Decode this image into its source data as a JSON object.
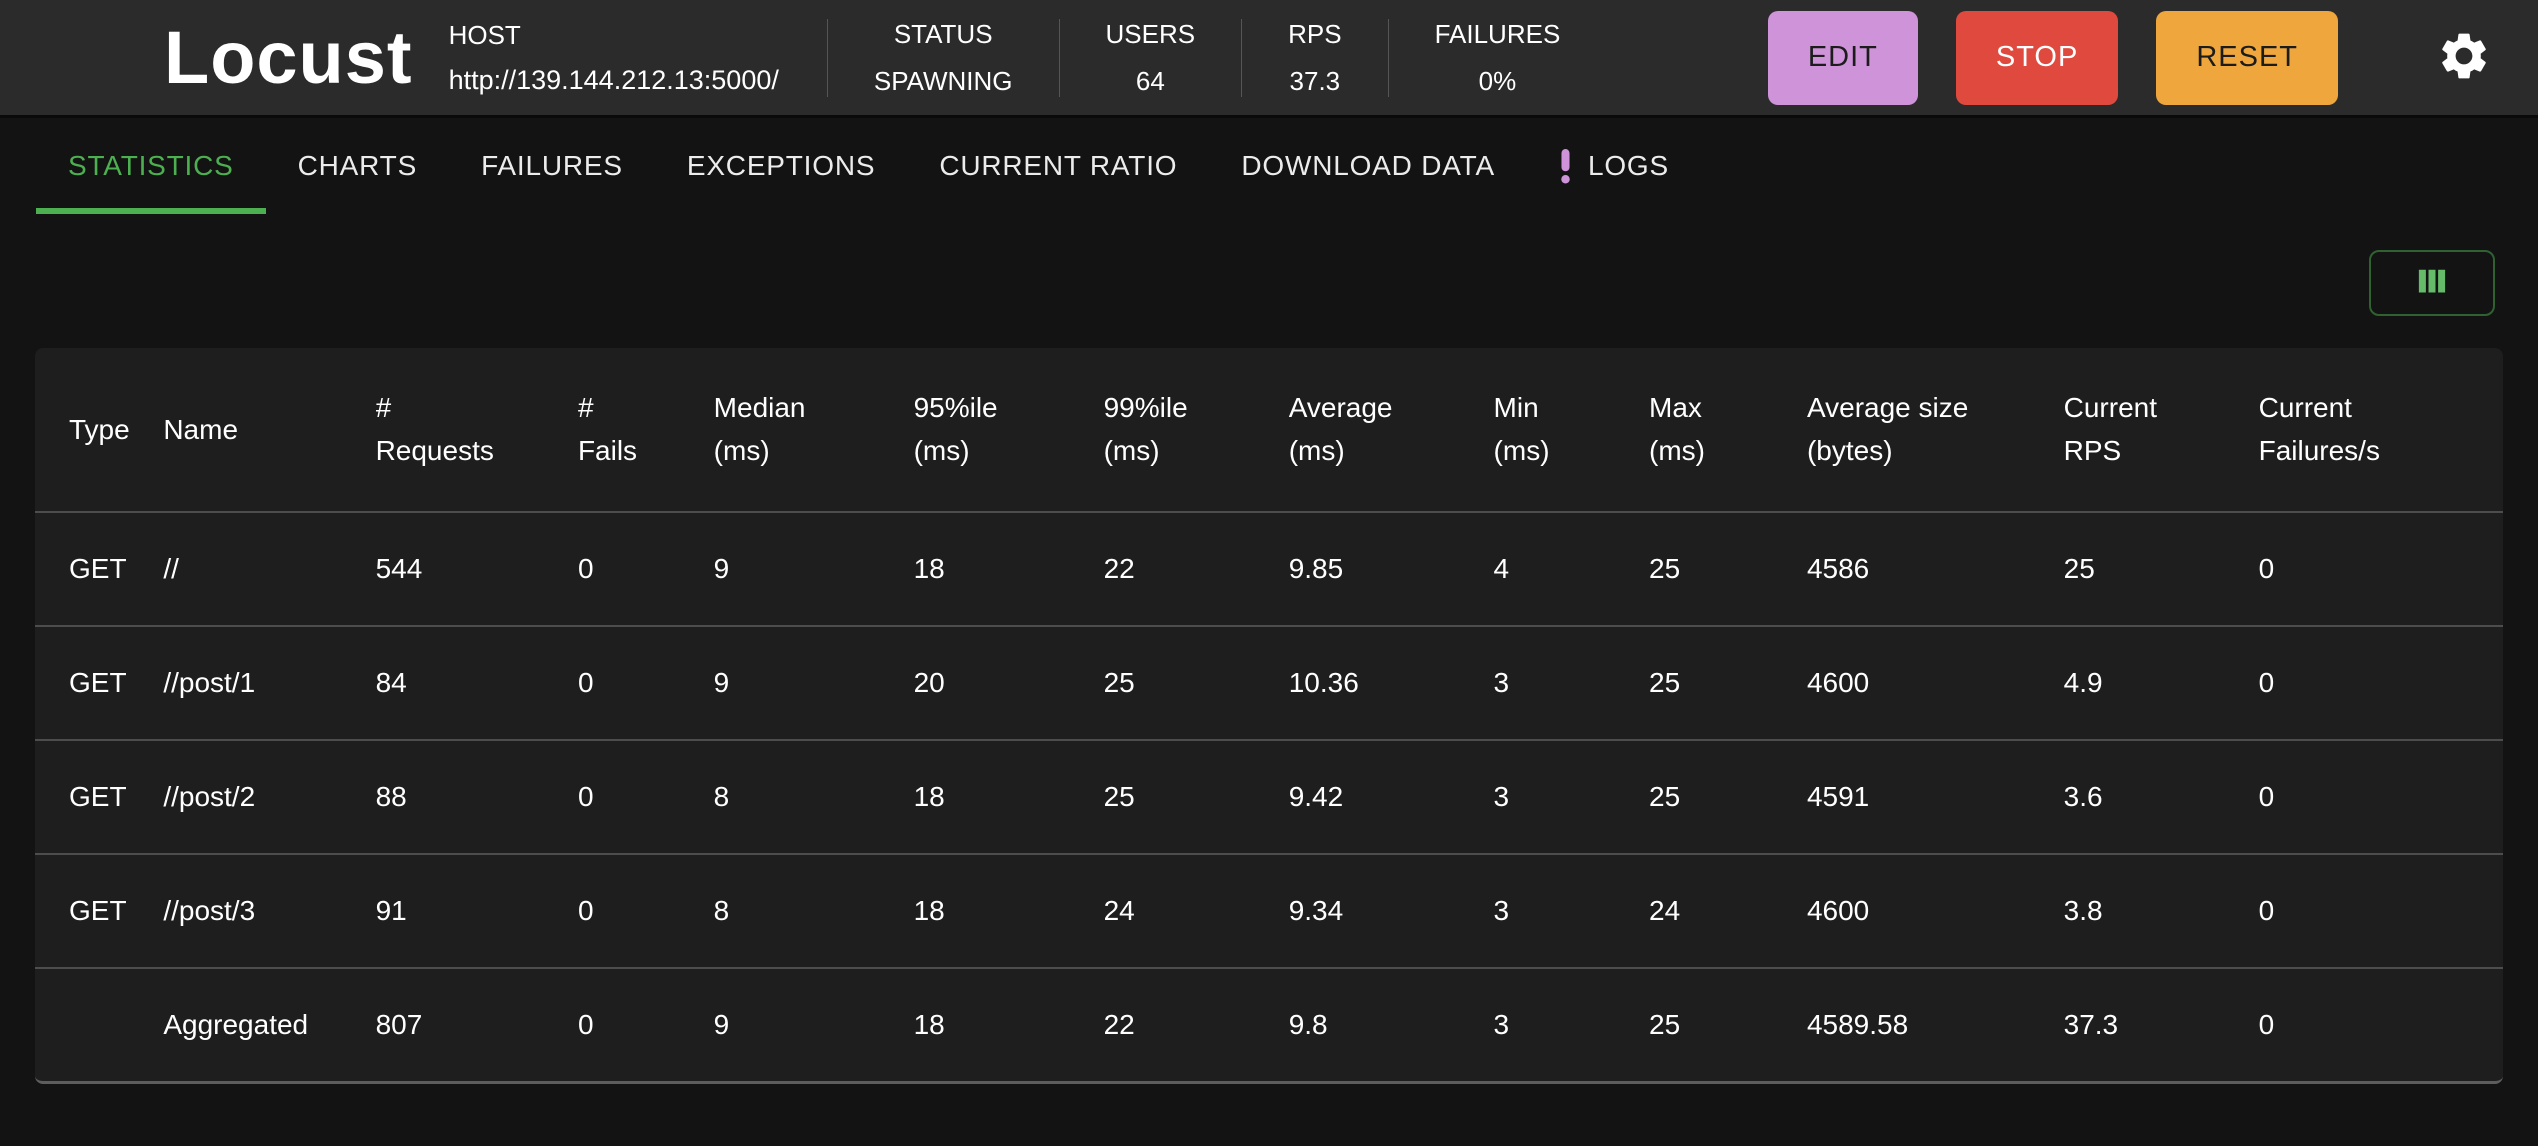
{
  "header": {
    "brand": "Locust",
    "host_label": "HOST",
    "host_url": "http://139.144.212.13:5000/",
    "stats": [
      {
        "label": "STATUS",
        "value": "SPAWNING"
      },
      {
        "label": "USERS",
        "value": "64"
      },
      {
        "label": "RPS",
        "value": "37.3"
      },
      {
        "label": "FAILURES",
        "value": "0%"
      }
    ],
    "buttons": {
      "edit": "EDIT",
      "stop": "STOP",
      "reset": "RESET"
    },
    "icons": {
      "settings": "gear-icon",
      "logo": "locust-logo-icon"
    }
  },
  "tabs": [
    {
      "label": "STATISTICS",
      "active": true
    },
    {
      "label": "CHARTS"
    },
    {
      "label": "FAILURES"
    },
    {
      "label": "EXCEPTIONS"
    },
    {
      "label": "CURRENT RATIO"
    },
    {
      "label": "DOWNLOAD DATA"
    },
    {
      "label": "LOGS",
      "badge": "!"
    }
  ],
  "toolbar": {
    "column_selector_icon": "view-columns-icon"
  },
  "table": {
    "columns": [
      {
        "lines": [
          "Type"
        ]
      },
      {
        "lines": [
          "Name"
        ]
      },
      {
        "lines": [
          "#",
          "Requests"
        ]
      },
      {
        "lines": [
          "#",
          "Fails"
        ]
      },
      {
        "lines": [
          "Median",
          "(ms)"
        ]
      },
      {
        "lines": [
          "95%ile",
          "(ms)"
        ]
      },
      {
        "lines": [
          "99%ile",
          "(ms)"
        ]
      },
      {
        "lines": [
          "Average",
          "(ms)"
        ]
      },
      {
        "lines": [
          "Min",
          "(ms)"
        ]
      },
      {
        "lines": [
          "Max",
          "(ms)"
        ]
      },
      {
        "lines": [
          "Average size",
          "(bytes)"
        ]
      },
      {
        "lines": [
          "Current",
          "RPS"
        ]
      },
      {
        "lines": [
          "Current",
          "Failures/s"
        ]
      }
    ],
    "rows": [
      [
        "GET",
        "//",
        "544",
        "0",
        "9",
        "18",
        "22",
        "9.85",
        "4",
        "25",
        "4586",
        "25",
        "0"
      ],
      [
        "GET",
        "//post/1",
        "84",
        "0",
        "9",
        "20",
        "25",
        "10.36",
        "3",
        "25",
        "4600",
        "4.9",
        "0"
      ],
      [
        "GET",
        "//post/2",
        "88",
        "0",
        "8",
        "18",
        "25",
        "9.42",
        "3",
        "25",
        "4591",
        "3.6",
        "0"
      ],
      [
        "GET",
        "//post/3",
        "91",
        "0",
        "8",
        "18",
        "24",
        "9.34",
        "3",
        "24",
        "4600",
        "3.8",
        "0"
      ],
      [
        "",
        "Aggregated",
        "807",
        "0",
        "9",
        "18",
        "22",
        "9.8",
        "3",
        "25",
        "4589.58",
        "37.3",
        "0"
      ]
    ]
  },
  "colors": {
    "accent_green": "#4caf50",
    "accent_green_light": "#66bb6a",
    "badge_purple": "#ce93d8",
    "edit_bg": "#ce93d8",
    "stop_bg": "#e04a3e",
    "reset_bg": "#efa73d",
    "header_bg": "#2b2b2b",
    "page_bg": "#131313",
    "card_bg": "#1e1e1e"
  }
}
